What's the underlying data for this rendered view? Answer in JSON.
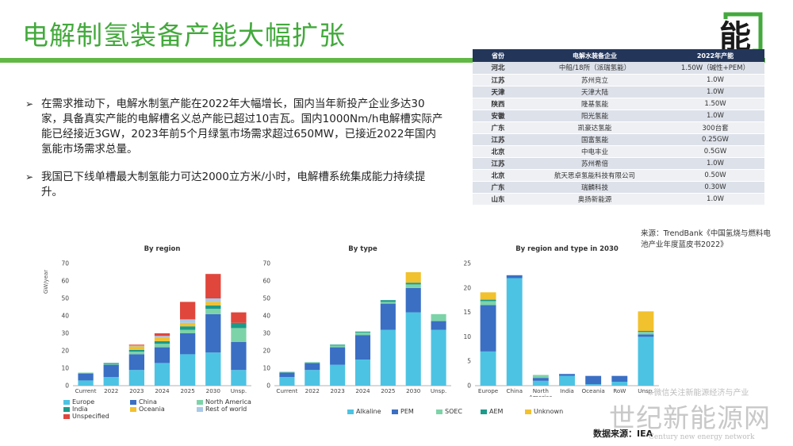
{
  "slide": {
    "title": "电解制氢装备产能大幅扩张",
    "bullets": [
      "在需求推动下，电解水制氢产能在2022年大幅增长，国内当年新投产企业多达30家，具备真实产能的电解槽名义总产能已超过10吉瓦。国内1000Nm/h电解槽实际产能已经接近3GW，2023年前5个月绿氢市场需求超过650MW，已接近2022年国内氢能市场需求总量。",
      "我国已下线单槽最大制氢能力可达2000立方米/小时，电解槽系统集成能力持续提升。"
    ],
    "bullet_marker": "➢",
    "source_note": "来源：TrendBank《中国氢烧与燃料电池产业年度蓝皮书2022》",
    "bottom_source": "数据来源：IEA",
    "watermark": "世纪新能源网",
    "watermark_small": "※微信关注新能源经济与产业",
    "watermark_en": "Century new energy network",
    "logo_text": "能"
  },
  "table": {
    "headers": [
      "省份",
      "电解水装备企业",
      "2022年产能"
    ],
    "rows": [
      [
        "河北",
        "中船/18所（派瑞氢能）",
        "1.50W（碱性+PEM）"
      ],
      [
        "江苏",
        "苏州竞立",
        "1.0W"
      ],
      [
        "天津",
        "天津大陆",
        "1.0W"
      ],
      [
        "陕西",
        "隆基氢能",
        "1.50W"
      ],
      [
        "安徽",
        "阳光氢能",
        "1.0W"
      ],
      [
        "广东",
        "凯豪达氢能",
        "300台套"
      ],
      [
        "江苏",
        "国富氢能",
        "0.25GW"
      ],
      [
        "北京",
        "中电丰业",
        "0.5GW"
      ],
      [
        "江苏",
        "苏州希倍",
        "1.0W"
      ],
      [
        "北京",
        "航天思卓氢能科技有限公司",
        "0.50W"
      ],
      [
        "广东",
        "瑞麟科技",
        "0.30W"
      ],
      [
        "山东",
        "奥扬新能源",
        "1.0W"
      ]
    ]
  },
  "colors": {
    "title_green": "#43a93c",
    "bar_green": "#62b844",
    "table_header": "#23365a",
    "europe": "#4dc3e3",
    "china": "#3a6fc4",
    "north_america": "#7dd3a8",
    "india": "#1c9a8a",
    "oceania": "#f2c12e",
    "rest_of_world": "#a9c9e8",
    "unspecified": "#e0463c"
  },
  "chart_data": [
    {
      "type": "bar",
      "stacked": true,
      "title": "By region",
      "ylabel": "GW/year",
      "ylim": [
        0,
        70
      ],
      "yticks": [
        "0",
        "10",
        "20",
        "30",
        "40",
        "50",
        "60",
        "70"
      ],
      "categories": [
        "Current",
        "2022",
        "2023",
        "2024",
        "2025",
        "2030",
        "Unsp."
      ],
      "grid": false,
      "legend_position": "bottom",
      "series": [
        {
          "name": "Europe",
          "color": "#4dc3e3",
          "values": [
            3,
            5,
            9,
            13,
            18,
            19,
            9
          ]
        },
        {
          "name": "China",
          "color": "#3a6fc4",
          "values": [
            4,
            7,
            9,
            9,
            12,
            22,
            16
          ]
        },
        {
          "name": "North America",
          "color": "#7dd3a8",
          "values": [
            0.5,
            0.5,
            1.5,
            2,
            2,
            3,
            8
          ]
        },
        {
          "name": "India",
          "color": "#1c9a8a",
          "values": [
            0,
            0.5,
            1,
            1.5,
            2,
            2,
            3
          ]
        },
        {
          "name": "Oceania",
          "color": "#f2c12e",
          "values": [
            0,
            0,
            2,
            2,
            2,
            2,
            0
          ]
        },
        {
          "name": "Rest of world",
          "color": "#a9c9e8",
          "values": [
            0,
            0,
            0.5,
            1,
            2,
            2,
            0
          ]
        },
        {
          "name": "Unspecified",
          "color": "#e0463c",
          "values": [
            0,
            0,
            0.5,
            1.5,
            10,
            14,
            6
          ]
        }
      ]
    },
    {
      "type": "bar",
      "stacked": true,
      "title": "By type",
      "ylim": [
        0,
        70
      ],
      "yticks": [
        "0",
        "10",
        "20",
        "30",
        "40",
        "50",
        "60",
        "70"
      ],
      "categories": [
        "Current",
        "2022",
        "2023",
        "2024",
        "2025",
        "2030",
        "Unsp."
      ],
      "grid": false,
      "legend_position": "bottom",
      "series": [
        {
          "name": "Alkaline",
          "color": "#4dc3e3",
          "values": [
            5,
            9,
            12,
            15,
            32,
            42,
            32
          ]
        },
        {
          "name": "PEM",
          "color": "#3a6fc4",
          "values": [
            2.5,
            4,
            10,
            14,
            15,
            14,
            5
          ]
        },
        {
          "name": "SOEC",
          "color": "#7dd3a8",
          "values": [
            0.5,
            0.5,
            1,
            1.5,
            1,
            2,
            4
          ]
        },
        {
          "name": "AEM",
          "color": "#1c9a8a",
          "values": [
            0,
            0,
            0.5,
            0.5,
            1,
            1,
            0
          ]
        },
        {
          "name": "Unknown",
          "color": "#f2c12e",
          "values": [
            0,
            0,
            0,
            0,
            0,
            6,
            0
          ]
        }
      ]
    },
    {
      "type": "bar",
      "stacked": true,
      "title": "By region and type in 2030",
      "ylim": [
        0,
        25
      ],
      "yticks": [
        "0",
        "5",
        "10",
        "15",
        "20",
        "25"
      ],
      "categories": [
        "Europe",
        "China",
        "North America",
        "India",
        "Oceania",
        "RoW",
        "Unsp."
      ],
      "grid": false,
      "series": [
        {
          "name": "Alkaline",
          "color": "#4dc3e3",
          "values": [
            7,
            22,
            1,
            2,
            0.3,
            0.8,
            10
          ]
        },
        {
          "name": "PEM",
          "color": "#3a6fc4",
          "values": [
            9.5,
            0.6,
            0.6,
            0.4,
            1.7,
            1.2,
            0.5
          ]
        },
        {
          "name": "SOEC",
          "color": "#7dd3a8",
          "values": [
            0.8,
            0,
            0.6,
            0,
            0,
            0,
            0.5
          ]
        },
        {
          "name": "AEM",
          "color": "#1c9a8a",
          "values": [
            0.3,
            0,
            0,
            0,
            0,
            0,
            0.2
          ]
        },
        {
          "name": "Unknown",
          "color": "#f2c12e",
          "values": [
            1.5,
            0,
            0,
            0,
            0,
            0,
            4
          ]
        }
      ]
    }
  ]
}
